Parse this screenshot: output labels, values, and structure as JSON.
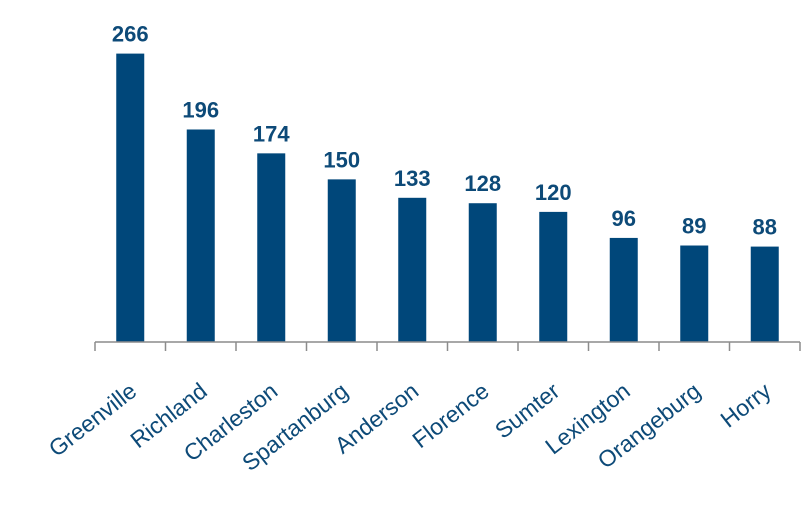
{
  "chart_data": {
    "type": "bar",
    "categories": [
      "Greenville",
      "Richland",
      "Charleston",
      "Spartanburg",
      "Anderson",
      "Florence",
      "Sumter",
      "Lexington",
      "Orangeburg",
      "Horry"
    ],
    "values": [
      266,
      196,
      174,
      150,
      133,
      128,
      120,
      96,
      89,
      88
    ],
    "data_labels": [
      "266",
      "196",
      "174",
      "150",
      "133",
      "128",
      "120",
      "96",
      "89",
      "88"
    ],
    "title": "",
    "xlabel": "",
    "ylabel": "",
    "ylim": [
      0,
      285
    ],
    "grid": false,
    "legend": "none",
    "colors": {
      "bar": "#00477a",
      "value_label": "#0d4a78",
      "axis": "#8c8c8c",
      "tick_label": "#0d4a78"
    }
  }
}
